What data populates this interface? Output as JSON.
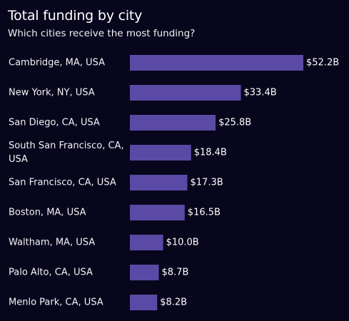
{
  "header": {
    "title": "Total funding by city",
    "subtitle": "Which cities receive the most funding?"
  },
  "colors": {
    "background": "#07061c",
    "bar": "#5a4aa6",
    "text": "#ffffff"
  },
  "chart_data": {
    "type": "bar",
    "orientation": "horizontal",
    "title": "Total funding by city",
    "subtitle": "Which cities receive the most funding?",
    "categories": [
      [
        "Cambridge, MA, USA"
      ],
      [
        "New York, NY, USA"
      ],
      [
        "San Diego, CA, USA"
      ],
      [
        "South San Francisco, CA,",
        "USA"
      ],
      [
        "San Francisco, CA, USA"
      ],
      [
        "Boston, MA, USA"
      ],
      [
        "Waltham, MA, USA"
      ],
      [
        "Palo Alto, CA, USA"
      ],
      [
        "Menlo Park, CA, USA"
      ]
    ],
    "values": [
      52.2,
      33.4,
      25.8,
      18.4,
      17.3,
      16.5,
      10.0,
      8.7,
      8.2
    ],
    "value_labels": [
      "$52.2B",
      "$33.4B",
      "$25.8B",
      "$18.4B",
      "$17.3B",
      "$16.5B",
      "$10.0B",
      "$8.7B",
      "$8.2B"
    ],
    "unit": "$B",
    "xlabel": "",
    "ylabel": "",
    "grid": false,
    "legend": "none"
  }
}
